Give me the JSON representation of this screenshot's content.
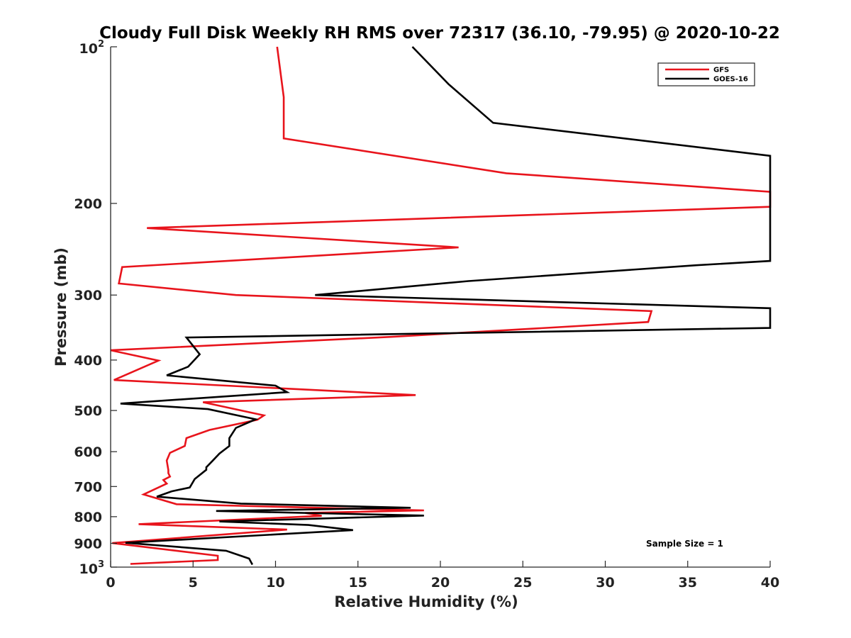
{
  "chart_data": {
    "type": "line",
    "title": "Cloudy Full Disk Weekly RH RMS over 72317 (36.10, -79.95) @ 2020-10-22",
    "xlabel": "Relative Humidity (%)",
    "ylabel": "Pressure (mb)",
    "xlim": [
      0,
      40
    ],
    "ylim": [
      100,
      1000
    ],
    "y_scale": "log",
    "y_reversed": true,
    "grid": false,
    "legend_position": "top-right",
    "x_ticks": [
      {
        "value": 0,
        "label": "0"
      },
      {
        "value": 5,
        "label": "5"
      },
      {
        "value": 10,
        "label": "10"
      },
      {
        "value": 15,
        "label": "15"
      },
      {
        "value": 20,
        "label": "20"
      },
      {
        "value": 25,
        "label": "25"
      },
      {
        "value": 30,
        "label": "30"
      },
      {
        "value": 35,
        "label": "35"
      },
      {
        "value": 40,
        "label": "40"
      }
    ],
    "y_ticks": [
      {
        "value": 100,
        "base": "10",
        "exp": "2"
      },
      {
        "value": 200,
        "label": "200"
      },
      {
        "value": 300,
        "label": "300"
      },
      {
        "value": 400,
        "label": "400"
      },
      {
        "value": 500,
        "label": "500"
      },
      {
        "value": 600,
        "label": "600"
      },
      {
        "value": 700,
        "label": "700"
      },
      {
        "value": 800,
        "label": "800"
      },
      {
        "value": 900,
        "label": "900"
      },
      {
        "value": 1000,
        "base": "10",
        "exp": "3"
      }
    ],
    "annotation": "Sample Size = 1",
    "series": [
      {
        "name": "GFS",
        "color": "#e8141c",
        "points": [
          [
            10.1,
            100
          ],
          [
            10.5,
            125
          ],
          [
            10.5,
            150
          ],
          [
            24,
            175
          ],
          [
            40,
            190
          ],
          [
            40,
            203
          ],
          [
            2.2,
            223
          ],
          [
            21.1,
            243
          ],
          [
            0.7,
            265
          ],
          [
            0.5,
            285
          ],
          [
            7.6,
            300
          ],
          [
            32.8,
            322
          ],
          [
            32.6,
            338
          ],
          [
            17,
            361
          ],
          [
            0,
            383
          ],
          [
            2.9,
            401
          ],
          [
            0.2,
            437
          ],
          [
            18.5,
            467
          ],
          [
            5.6,
            482
          ],
          [
            9.3,
            511
          ],
          [
            8.9,
            521
          ],
          [
            6,
            545
          ],
          [
            4.6,
            565
          ],
          [
            4.5,
            585
          ],
          [
            3.6,
            603
          ],
          [
            3.4,
            624
          ],
          [
            3.5,
            651
          ],
          [
            3.5,
            660
          ],
          [
            3.6,
            670
          ],
          [
            3.2,
            680
          ],
          [
            3.4,
            691
          ],
          [
            2,
            725
          ],
          [
            4,
            757
          ],
          [
            19,
            778
          ],
          [
            11.8,
            787
          ],
          [
            12.8,
            797
          ],
          [
            1.7,
            827
          ],
          [
            10.7,
            847
          ],
          [
            0.1,
            899
          ],
          [
            6.5,
            951
          ],
          [
            6.5,
            969
          ],
          [
            1.2,
            986
          ]
        ]
      },
      {
        "name": "GOES-16",
        "color": "#000000",
        "points": [
          [
            18.3,
            100
          ],
          [
            20.5,
            118
          ],
          [
            23.2,
            140
          ],
          [
            40,
            162
          ],
          [
            40,
            258
          ],
          [
            35.5,
            263
          ],
          [
            21.7,
            282
          ],
          [
            12.4,
            300
          ],
          [
            40,
            318
          ],
          [
            40,
            347
          ],
          [
            4.6,
            362
          ],
          [
            5.4,
            390
          ],
          [
            4.7,
            412
          ],
          [
            3.4,
            428
          ],
          [
            10,
            448
          ],
          [
            10.7,
            461
          ],
          [
            0.6,
            485
          ],
          [
            5.9,
            497
          ],
          [
            8.8,
            520
          ],
          [
            7.6,
            540
          ],
          [
            7.2,
            565
          ],
          [
            7.2,
            585
          ],
          [
            6.6,
            605
          ],
          [
            6.2,
            624
          ],
          [
            5.8,
            643
          ],
          [
            5.8,
            650
          ],
          [
            5.1,
            677
          ],
          [
            4.8,
            703
          ],
          [
            3.7,
            715
          ],
          [
            2.8,
            732
          ],
          [
            7.9,
            755
          ],
          [
            18.2,
            769
          ],
          [
            6.4,
            780
          ],
          [
            19,
            796
          ],
          [
            6.6,
            817
          ],
          [
            12,
            830
          ],
          [
            14.7,
            849
          ],
          [
            0.9,
            898
          ],
          [
            7,
            930
          ],
          [
            8.4,
            963
          ],
          [
            8.6,
            989
          ]
        ]
      }
    ]
  }
}
